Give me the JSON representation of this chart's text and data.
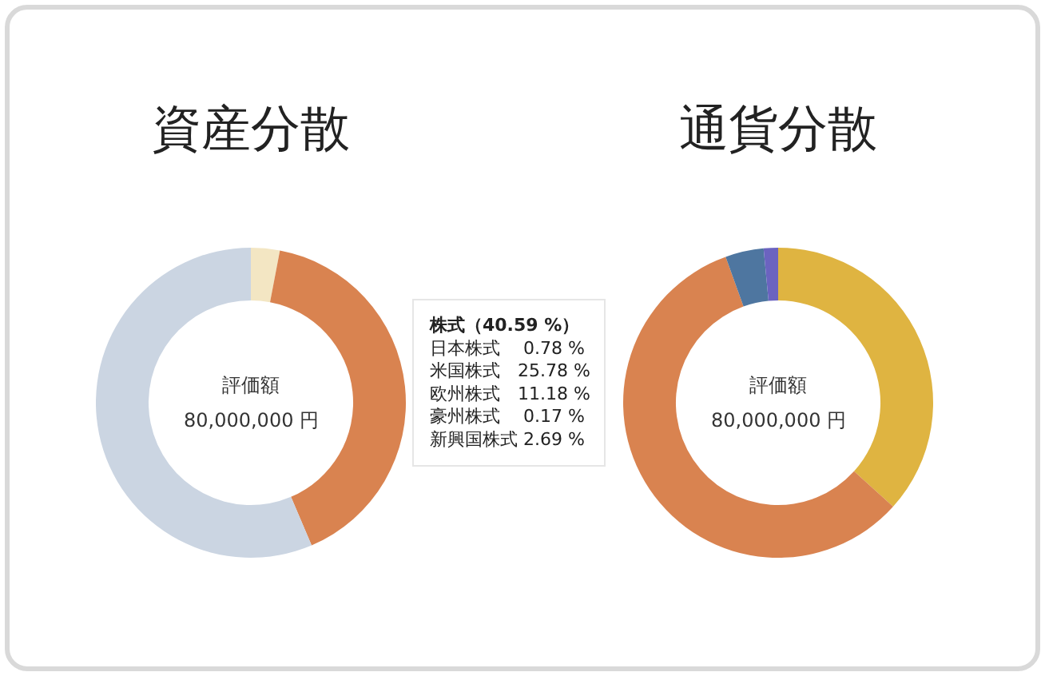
{
  "chart_data": [
    {
      "type": "donut",
      "title": "資産分散",
      "categories": [
        null,
        null,
        null
      ],
      "values": [
        3,
        40.59,
        56.41
      ],
      "colors": [
        "#f3e6c3",
        "#d98350",
        "#cbd5e2"
      ],
      "annotations": [
        "評価額",
        "80,000,000 円",
        "株式（40.59 %）",
        "日本株式　 0.78 %",
        "米国株式　25.78 %",
        "欧州株式　11.18 %",
        "豪州株式　 0.17 %",
        "新興国株式 2.69 %"
      ]
    },
    {
      "type": "donut",
      "title": "通貨分散",
      "categories": [
        null,
        null,
        null,
        null
      ],
      "values": [
        36.7,
        57.8,
        4.0,
        1.5
      ],
      "colors": [
        "#dfb441",
        "#d98350",
        "#4e76a0",
        "#6b63c0"
      ],
      "annotations": [
        "評価額",
        "80,000,000 円"
      ]
    }
  ]
}
